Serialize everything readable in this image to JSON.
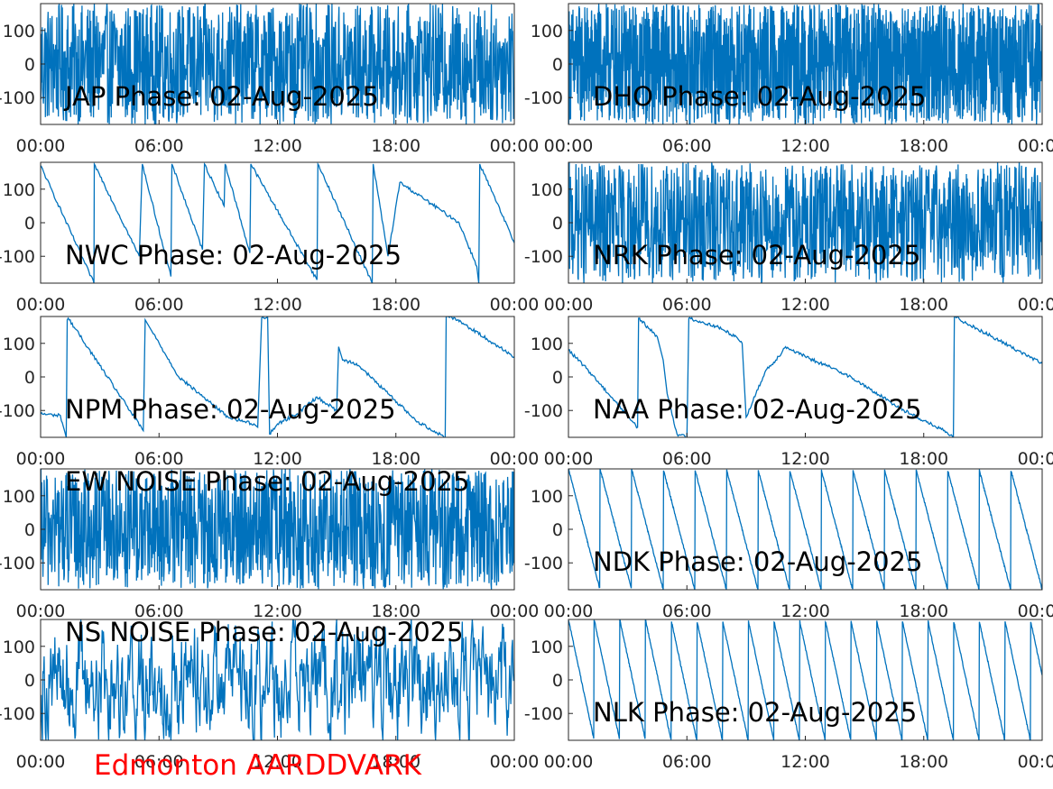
{
  "figure_caption": "Edmonton AARDDVARK",
  "colors": {
    "trace": "#0072BD",
    "caption": "#ff0000",
    "axes": "#262626",
    "background": "#ffffff"
  },
  "chart_data": [
    {
      "type": "line",
      "title": "JAP Phase: 02-Aug-2025",
      "signal": "noise_dense",
      "title_pos": "bottom",
      "xlim": [
        "00:00",
        "24:00"
      ],
      "ylim": [
        -180,
        180
      ],
      "x_ticks": [
        "00:00",
        "06:00",
        "12:00",
        "18:00",
        "00:00"
      ],
      "y_ticks": [
        -100,
        0,
        100
      ]
    },
    {
      "type": "line",
      "title": "DHO Phase: 02-Aug-2025",
      "signal": "noise_very_dense",
      "title_pos": "bottom",
      "xlim": [
        "00:00",
        "24:00"
      ],
      "ylim": [
        -180,
        180
      ],
      "x_ticks": [
        "00:00",
        "06:00",
        "12:00",
        "18:00",
        "00:00"
      ],
      "y_ticks": [
        -100,
        0,
        100
      ]
    },
    {
      "type": "line",
      "title": "NWC Phase: 02-Aug-2025",
      "signal": "sawtooth",
      "title_pos": "bottom",
      "xlim": [
        "00:00",
        "24:00"
      ],
      "ylim": [
        -180,
        180
      ],
      "x_ticks": [
        "00:00",
        "06:00",
        "12:00",
        "18:00",
        "00:00"
      ],
      "y_ticks": [
        -100,
        0,
        100
      ],
      "points": [
        [
          0.0,
          170
        ],
        [
          2.7,
          -180
        ],
        [
          2.72,
          175
        ],
        [
          5.0,
          -100
        ],
        [
          5.15,
          175
        ],
        [
          6.6,
          -160
        ],
        [
          6.65,
          175
        ],
        [
          8.2,
          -80
        ],
        [
          8.3,
          175
        ],
        [
          9.3,
          50
        ],
        [
          9.35,
          175
        ],
        [
          10.6,
          -90
        ],
        [
          10.65,
          175
        ],
        [
          14.0,
          -170
        ],
        [
          14.05,
          175
        ],
        [
          16.8,
          -180
        ],
        [
          16.85,
          175
        ],
        [
          17.6,
          -100
        ],
        [
          18.2,
          120
        ],
        [
          21.2,
          0
        ],
        [
          22.1,
          -130
        ],
        [
          22.2,
          -180
        ],
        [
          22.25,
          175
        ],
        [
          24.0,
          -60
        ]
      ]
    },
    {
      "type": "line",
      "title": "NRK Phase: 02-Aug-2025",
      "signal": "noise_dense",
      "title_pos": "bottom",
      "xlim": [
        "00:00",
        "24:00"
      ],
      "ylim": [
        -180,
        180
      ],
      "x_ticks": [
        "00:00",
        "06:00",
        "12:00",
        "18:00",
        "00:00"
      ],
      "y_ticks": [
        -100,
        0,
        100
      ]
    },
    {
      "type": "line",
      "title": "NPM Phase: 02-Aug-2025",
      "signal": "trace",
      "title_pos": "bottom",
      "xlim": [
        "00:00",
        "24:00"
      ],
      "ylim": [
        -180,
        180
      ],
      "x_ticks": [
        "00:00",
        "06:00",
        "12:00",
        "18:00",
        "00:00"
      ],
      "y_ticks": [
        -100,
        0,
        100
      ],
      "points": [
        [
          0.0,
          -110
        ],
        [
          1.0,
          -115
        ],
        [
          1.3,
          -180
        ],
        [
          1.35,
          170
        ],
        [
          1.4,
          175
        ],
        [
          5.2,
          -160
        ],
        [
          5.3,
          170
        ],
        [
          5.6,
          140
        ],
        [
          7.0,
          0
        ],
        [
          9.5,
          -120
        ],
        [
          10.8,
          -140
        ],
        [
          11.0,
          -150
        ],
        [
          11.2,
          175
        ],
        [
          11.5,
          180
        ],
        [
          11.6,
          -170
        ],
        [
          12.0,
          -140
        ],
        [
          13.0,
          -110
        ],
        [
          14.0,
          -60
        ],
        [
          15.0,
          -100
        ],
        [
          15.1,
          90
        ],
        [
          15.3,
          50
        ],
        [
          16.0,
          40
        ],
        [
          18.5,
          -100
        ],
        [
          19.0,
          -130
        ],
        [
          20.5,
          -180
        ],
        [
          20.55,
          180
        ],
        [
          21.0,
          175
        ],
        [
          24.0,
          60
        ]
      ]
    },
    {
      "type": "line",
      "title": "NAA Phase: 02-Aug-2025",
      "signal": "trace",
      "title_pos": "bottom",
      "xlim": [
        "00:00",
        "24:00"
      ],
      "ylim": [
        -180,
        180
      ],
      "x_ticks": [
        "00:00",
        "06:00",
        "12:00",
        "18:00",
        "00:00"
      ],
      "y_ticks": [
        -100,
        0,
        100
      ],
      "points": [
        [
          0.0,
          80
        ],
        [
          1.0,
          20
        ],
        [
          3.5,
          -150
        ],
        [
          3.55,
          175
        ],
        [
          4.5,
          120
        ],
        [
          4.8,
          50
        ],
        [
          5.0,
          -50
        ],
        [
          5.5,
          -170
        ],
        [
          6.0,
          -180
        ],
        [
          6.1,
          175
        ],
        [
          7.5,
          150
        ],
        [
          8.5,
          120
        ],
        [
          8.8,
          100
        ],
        [
          9.0,
          -120
        ],
        [
          9.5,
          -50
        ],
        [
          10.0,
          20
        ],
        [
          10.5,
          50
        ],
        [
          11.0,
          90
        ],
        [
          12.0,
          60
        ],
        [
          14.0,
          10
        ],
        [
          17.0,
          -100
        ],
        [
          19.0,
          -160
        ],
        [
          19.5,
          -180
        ],
        [
          19.55,
          180
        ],
        [
          24.0,
          40
        ]
      ]
    },
    {
      "type": "line",
      "title": "EW NOISE Phase: 02-Aug-2025",
      "signal": "noise_dense",
      "title_pos": "top",
      "xlim": [
        "00:00",
        "24:00"
      ],
      "ylim": [
        -180,
        180
      ],
      "x_ticks": [
        "00:00",
        "06:00",
        "12:00",
        "18:00",
        "00:00"
      ],
      "y_ticks": [
        -100,
        0,
        100
      ]
    },
    {
      "type": "line",
      "title": "NDK Phase: 02-Aug-2025",
      "signal": "sawtooth_regular",
      "title_pos": "bottom",
      "xlim": [
        "00:00",
        "24:00"
      ],
      "ylim": [
        -180,
        180
      ],
      "x_ticks": [
        "00:00",
        "06:00",
        "12:00",
        "18:00",
        "00:00"
      ],
      "y_ticks": [
        -100,
        0,
        100
      ],
      "period_hours": 1.6
    },
    {
      "type": "line",
      "title": "NS NOISE Phase: 02-Aug-2025",
      "signal": "noise_medium",
      "title_pos": "top",
      "xlim": [
        "00:00",
        "24:00"
      ],
      "ylim": [
        -180,
        180
      ],
      "x_ticks": [
        "00:00",
        "06:00",
        "12:00",
        "18:00",
        "00:00"
      ],
      "y_ticks": [
        -100,
        0,
        100
      ]
    },
    {
      "type": "line",
      "title": "NLK Phase: 02-Aug-2025",
      "signal": "sawtooth_regular",
      "title_pos": "bottom",
      "xlim": [
        "00:00",
        "24:00"
      ],
      "ylim": [
        -180,
        180
      ],
      "x_ticks": [
        "00:00",
        "06:00",
        "12:00",
        "18:00",
        "00:00"
      ],
      "y_ticks": [
        -100,
        0,
        100
      ],
      "period_hours": 1.3
    }
  ]
}
